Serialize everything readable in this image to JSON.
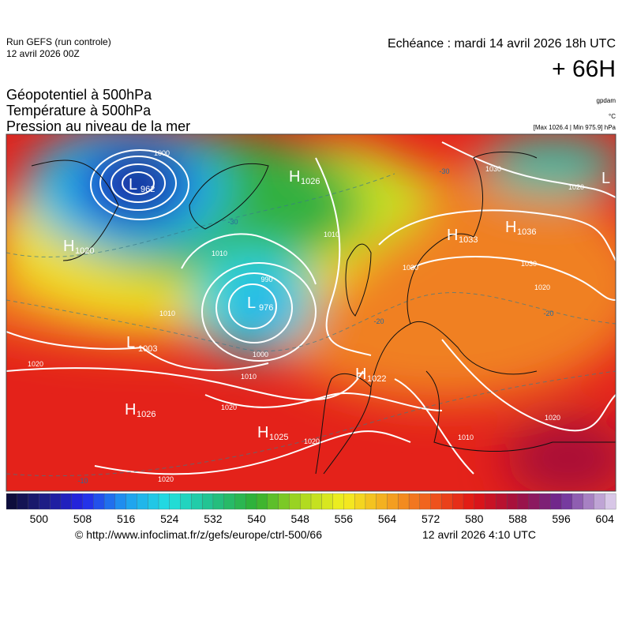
{
  "header": {
    "run": "Run GEFS (run controle)",
    "run_date": "12 avril 2026 00Z",
    "valid": "Echéance : mardi 14 avril 2026 18h UTC",
    "lead": "+ 66H",
    "lines": [
      "Géopotentiel à 500hPa",
      "Température à 500hPa",
      "Pression au niveau de la mer"
    ],
    "unit_geo": "gpdam",
    "unit_temp": "°C",
    "pressure_range": "[Max 1026.4 | Min 975.9] hPa"
  },
  "centers": [
    {
      "letter": "L",
      "value": 962
    },
    {
      "letter": "H",
      "value": 1026
    },
    {
      "letter": "H",
      "value": 1020
    },
    {
      "letter": "L",
      "value": 976
    },
    {
      "letter": "L",
      "value": 1003
    },
    {
      "letter": "H",
      "value": 1026
    },
    {
      "letter": "H",
      "value": 1025
    },
    {
      "letter": "H",
      "value": 1022
    },
    {
      "letter": "H",
      "value": 1033
    },
    {
      "letter": "H",
      "value": 1036
    },
    {
      "letter": "L"
    }
  ],
  "isobar_labels": [
    1000,
    990,
    1000,
    1010,
    1010,
    1020,
    1020,
    1020,
    1020,
    1010,
    1030,
    1030,
    1020,
    1020,
    1030,
    1020,
    1010,
    1010
  ],
  "isotherm_labels": [
    -30,
    -20,
    -20,
    -10,
    -30
  ],
  "colorbar": {
    "range": [
      494,
      606
    ],
    "step": 2,
    "stops": [
      {
        "value": 494,
        "color": "#0a0a30"
      },
      {
        "value": 500,
        "color": "#1c1c78"
      },
      {
        "value": 508,
        "color": "#2424e8"
      },
      {
        "value": 516,
        "color": "#1e9cf0"
      },
      {
        "value": 524,
        "color": "#22e0e0"
      },
      {
        "value": 532,
        "color": "#22c088"
      },
      {
        "value": 540,
        "color": "#30b030"
      },
      {
        "value": 548,
        "color": "#a8d820"
      },
      {
        "value": 556,
        "color": "#f4f020"
      },
      {
        "value": 564,
        "color": "#f4a820"
      },
      {
        "value": 572,
        "color": "#f05a1e"
      },
      {
        "value": 580,
        "color": "#e01414"
      },
      {
        "value": 588,
        "color": "#a01040"
      },
      {
        "value": 596,
        "color": "#6a2a96"
      },
      {
        "value": 606,
        "color": "#e4d8f0"
      }
    ],
    "ticks": [
      500,
      508,
      516,
      524,
      532,
      540,
      548,
      556,
      564,
      572,
      580,
      588,
      596,
      604
    ]
  },
  "footer": {
    "source": "© http://www.infoclimat.fr/z/gefs/europe/ctrl-500/66",
    "generated": "12 avril 2026  4:10 UTC"
  }
}
